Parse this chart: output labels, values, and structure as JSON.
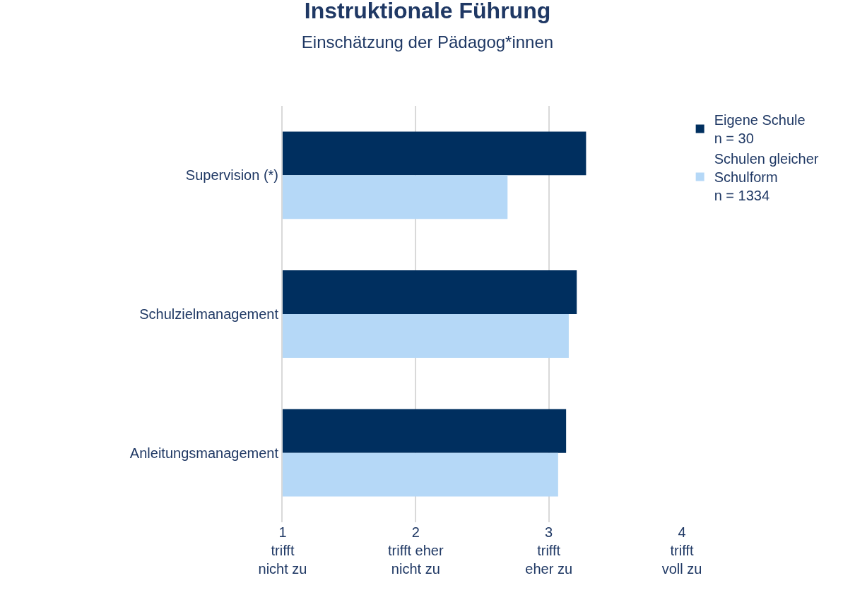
{
  "chart_data": {
    "type": "bar",
    "orientation": "horizontal",
    "title": "Instruktionale Führung",
    "subtitle": "Einschätzung der Pädagog*innen",
    "categories": [
      "Supervision (*)",
      "Schulzielmanagement",
      "Anleitungsmanagement"
    ],
    "series": [
      {
        "name": "Eigene Schule\nn = 30",
        "color": "#002f5f",
        "values": [
          3.28,
          3.21,
          3.13
        ]
      },
      {
        "name": "Schulen gleicher\nSchulform\nn = 1334",
        "color": "#b5d8f7",
        "values": [
          2.69,
          3.15,
          3.07
        ]
      }
    ],
    "xlim": [
      1,
      4
    ],
    "xticks": [
      {
        "value": 1,
        "label": "1\ntrifft\nnicht zu"
      },
      {
        "value": 2,
        "label": "2\ntrifft eher\nnicht zu"
      },
      {
        "value": 3,
        "label": "3\ntrifft\neher zu"
      },
      {
        "value": 4,
        "label": "4\ntrifft\nvoll zu"
      }
    ],
    "grid": "x",
    "legend": "top right"
  }
}
